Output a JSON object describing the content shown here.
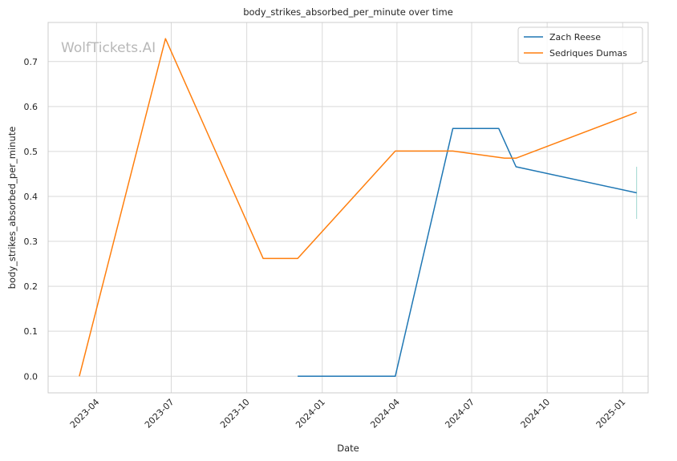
{
  "chart_data": {
    "type": "line",
    "title": "body_strikes_absorbed_per_minute over time",
    "xlabel": "Date",
    "ylabel": "body_strikes_absorbed_per_minute",
    "watermark": "WolfTickets.AI",
    "xlim": [
      "2023-02-01",
      "2025-02-01"
    ],
    "ylim": [
      -0.037,
      0.787
    ],
    "x_ticks": [
      "2023-04-01",
      "2023-07-01",
      "2023-10-01",
      "2024-01-01",
      "2024-04-01",
      "2024-07-01",
      "2024-10-01",
      "2025-01-01"
    ],
    "x_tick_labels": [
      "2023-04",
      "2023-07",
      "2023-10",
      "2024-01",
      "2024-04",
      "2024-07",
      "2024-10",
      "2025-01"
    ],
    "y_ticks": [
      0.0,
      0.1,
      0.2,
      0.3,
      0.4,
      0.5,
      0.6,
      0.7
    ],
    "y_tick_labels": [
      "0.0",
      "0.1",
      "0.2",
      "0.3",
      "0.4",
      "0.5",
      "0.6",
      "0.7"
    ],
    "grid": true,
    "legend_position": "top-right",
    "series": [
      {
        "name": "Zach Reese",
        "color": "#1f77b4",
        "points": [
          {
            "x": "2023-12-02",
            "y": 0.0
          },
          {
            "x": "2024-03-30",
            "y": 0.0
          },
          {
            "x": "2024-06-08",
            "y": 0.551
          },
          {
            "x": "2024-08-03",
            "y": 0.551
          },
          {
            "x": "2024-08-24",
            "y": 0.466
          },
          {
            "x": "2025-01-18",
            "y": 0.408
          }
        ]
      },
      {
        "name": "Sedriques Dumas",
        "color": "#ff7f0e",
        "points": [
          {
            "x": "2023-03-11",
            "y": 0.0
          },
          {
            "x": "2023-06-24",
            "y": 0.751
          },
          {
            "x": "2023-10-21",
            "y": 0.262
          },
          {
            "x": "2023-12-02",
            "y": 0.262
          },
          {
            "x": "2024-03-30",
            "y": 0.501
          },
          {
            "x": "2024-06-08",
            "y": 0.501
          },
          {
            "x": "2024-08-10",
            "y": 0.485
          },
          {
            "x": "2024-08-24",
            "y": 0.485
          },
          {
            "x": "2025-01-18",
            "y": 0.587
          }
        ]
      }
    ],
    "error_bar": {
      "x": "2025-01-18",
      "y_low": 0.35,
      "y_high": 0.466,
      "color": "#9ed8d0"
    }
  }
}
